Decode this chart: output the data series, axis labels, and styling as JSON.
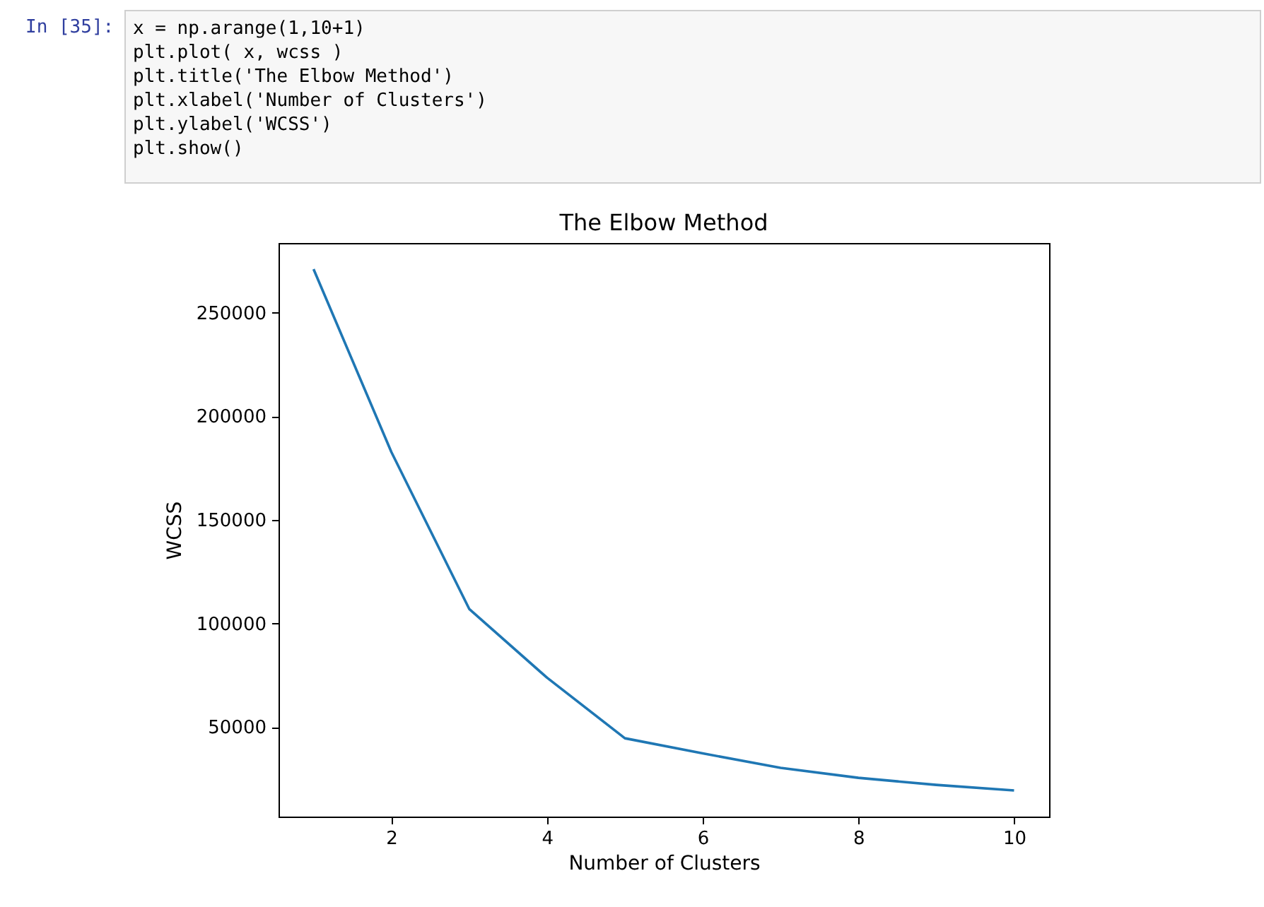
{
  "chart_data": {
    "type": "line",
    "title": "The Elbow Method",
    "xlabel": "Number of Clusters",
    "ylabel": "WCSS",
    "x": [
      1,
      2,
      3,
      4,
      5,
      6,
      7,
      8,
      9,
      10
    ],
    "values": [
      271000,
      182700,
      107000,
      73800,
      44600,
      37300,
      30300,
      25500,
      22100,
      19400
    ],
    "color": "#1f77b4",
    "xlim": [
      0.55,
      10.45
    ],
    "xticks": [
      2,
      4,
      6,
      8,
      10
    ],
    "ylim": [
      6800,
      283600
    ],
    "yticks": [
      50000,
      100000,
      150000,
      200000,
      250000
    ],
    "annotations": [
      "In [35]:",
      "x = np.arange(1,10+1)",
      "plt.plot( x, wcss )",
      "plt.title('The Elbow Method')",
      "plt.xlabel('Number of Clusters')",
      "plt.ylabel('WCSS')",
      "plt.show()"
    ]
  }
}
